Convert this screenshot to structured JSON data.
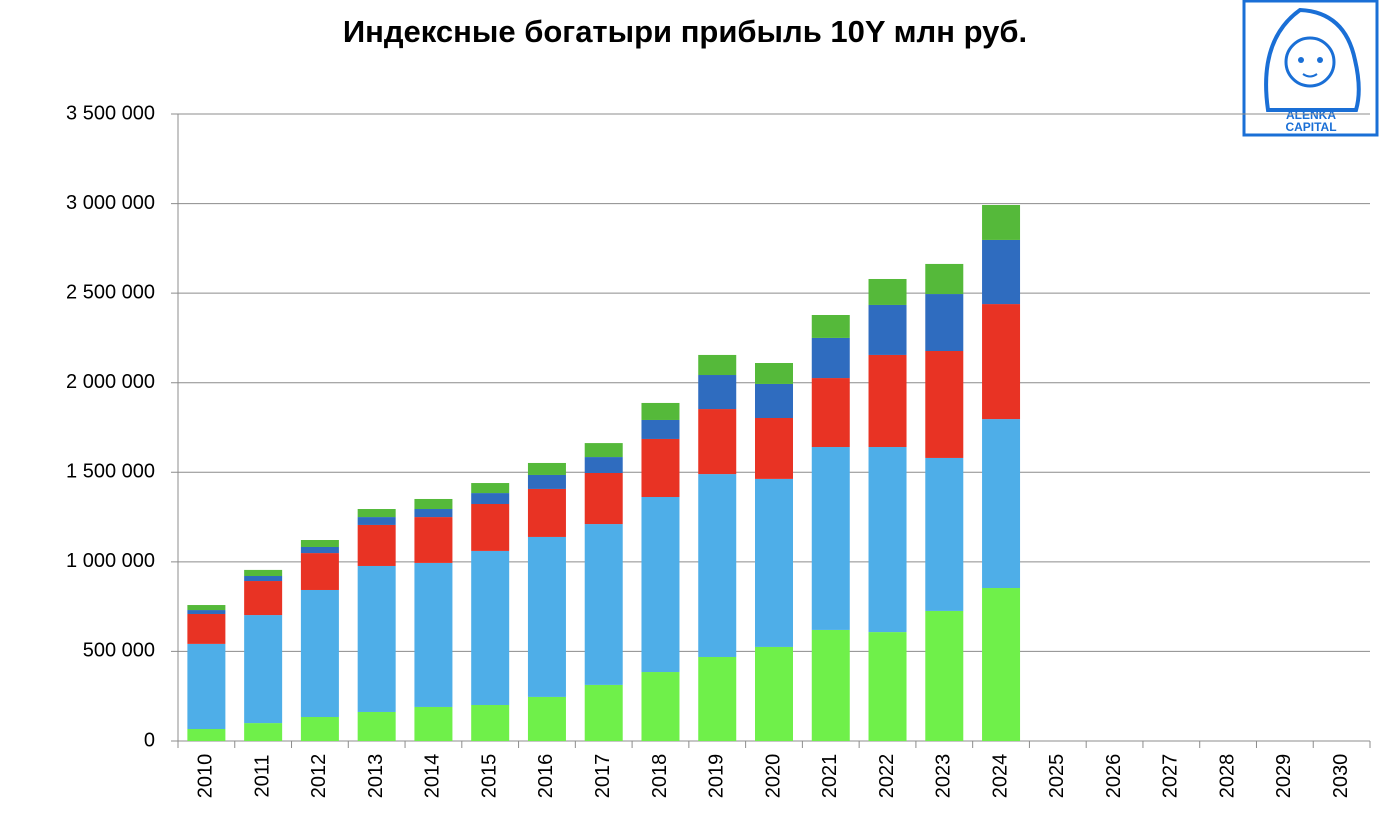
{
  "chart_data": {
    "type": "stacked_bar",
    "title": "Индексные богатыри прибыль 10Y млн руб.",
    "logo": {
      "line1": "ALËNKA",
      "line2": "CAPITAL"
    },
    "categories": [
      "2010",
      "2011",
      "2012",
      "2013",
      "2014",
      "2015",
      "2016",
      "2017",
      "2018",
      "2019",
      "2020",
      "2021",
      "2022",
      "2023",
      "2024",
      "2025",
      "2026",
      "2027",
      "2028",
      "2029",
      "2030"
    ],
    "series": [
      {
        "color": "#6ff04a",
        "values": [
          67000,
          100000,
          134000,
          162000,
          190000,
          201000,
          246000,
          313000,
          385000,
          469000,
          525000,
          620000,
          608000,
          726000,
          854000,
          null,
          null,
          null,
          null,
          null,
          null
        ]
      },
      {
        "color": "#4eaee8",
        "values": [
          475000,
          603000,
          709000,
          815000,
          804000,
          860000,
          893000,
          898000,
          977000,
          1021000,
          938000,
          1021000,
          1033000,
          854000,
          943000,
          null,
          null,
          null,
          null,
          null,
          null
        ]
      },
      {
        "color": "#e83324",
        "values": [
          167000,
          190000,
          206000,
          229000,
          256000,
          262000,
          268000,
          285000,
          324000,
          363000,
          340000,
          385000,
          514000,
          597000,
          642000,
          null,
          null,
          null,
          null,
          null,
          null
        ]
      },
      {
        "color": "#2f6cbf",
        "values": [
          22000,
          28000,
          34000,
          44000,
          45000,
          61000,
          78000,
          89000,
          106000,
          190000,
          190000,
          224000,
          279000,
          318000,
          358000,
          null,
          null,
          null,
          null,
          null,
          null
        ]
      },
      {
        "color": "#55b93a",
        "values": [
          28000,
          34000,
          39000,
          45000,
          56000,
          56000,
          67000,
          78000,
          95000,
          112000,
          117000,
          128000,
          145000,
          168000,
          195000,
          null,
          null,
          null,
          null,
          null,
          null
        ]
      }
    ],
    "ylim": [
      0,
      3500000
    ],
    "yticks": [
      0,
      {
        "value": 500000,
        "label": "500 000"
      },
      {
        "value": 1000000,
        "label": "1 000 000"
      },
      {
        "value": 1500000,
        "label": "1 500 000"
      },
      {
        "value": 2000000,
        "label": "2 000 000"
      },
      {
        "value": 2500000,
        "label": "2 500 000"
      },
      {
        "value": 3000000,
        "label": "3 000 000"
      },
      {
        "value": 3500000,
        "label": "3 500 000"
      }
    ],
    "grid": true
  }
}
